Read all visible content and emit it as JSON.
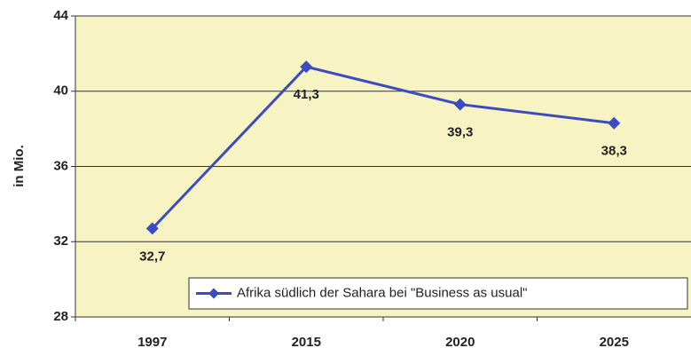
{
  "chart_data": {
    "type": "line",
    "y_label": "in Mio.",
    "categories": [
      "1997",
      "2015",
      "2020",
      "2025"
    ],
    "series": [
      {
        "name": "Afrika südlich der Sahara bei \"Business as usual\"",
        "color": "#3b4cc0",
        "values": [
          32.7,
          41.3,
          39.3,
          38.3
        ],
        "value_labels": [
          "32,7",
          "41,3",
          "39,3",
          "38,3"
        ]
      }
    ],
    "ylim": [
      28,
      44
    ],
    "yticks": [
      28,
      32,
      36,
      40,
      44
    ],
    "grid": true,
    "background": "#f7f3c2",
    "legend": "lower right"
  }
}
